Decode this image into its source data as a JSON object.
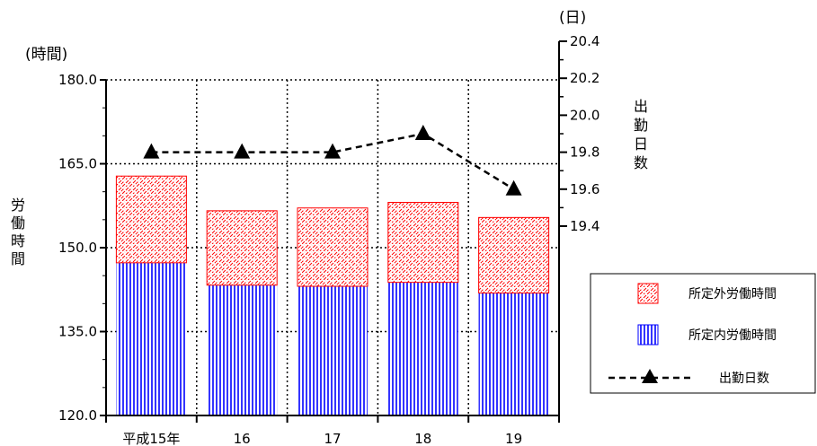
{
  "chart_data": {
    "type": "bar",
    "categories": [
      "平成15年",
      "16",
      "17",
      "18",
      "19"
    ],
    "series": [
      {
        "name": "所定内労働時間",
        "kind": "stacked-bar",
        "axis": "left",
        "values": [
          147.3,
          143.3,
          143.1,
          143.8,
          141.9
        ],
        "color": "#0000ff",
        "pattern": "vertical-stripes"
      },
      {
        "name": "所定外労働時間",
        "kind": "stacked-bar",
        "axis": "left",
        "values": [
          15.5,
          13.3,
          14.0,
          14.3,
          13.5
        ],
        "color": "#ff0000",
        "pattern": "diagonal-hatch"
      },
      {
        "name": "出勤日数",
        "kind": "line",
        "axis": "right",
        "values": [
          19.8,
          19.8,
          19.8,
          19.9,
          19.6
        ],
        "color": "#000000",
        "line_style": "dashed",
        "marker": "triangle"
      }
    ],
    "left_axis": {
      "unit": "(時間)",
      "title": "労働時間",
      "ylim": [
        120,
        180
      ],
      "ticks": [
        "120.0",
        "135.0",
        "150.0",
        "165.0",
        "180.0"
      ]
    },
    "right_axis": {
      "unit": "(日)",
      "title": "出勤日数",
      "ylim": [
        19.4,
        20.4
      ],
      "ticks": [
        "19.4",
        "19.6",
        "19.8",
        "20.0",
        "20.2",
        "20.4"
      ]
    },
    "grid": true,
    "legend": {
      "placement": "bottom-right",
      "items": [
        "所定外労働時間",
        "所定内労働時間",
        "出勤日数"
      ]
    }
  }
}
